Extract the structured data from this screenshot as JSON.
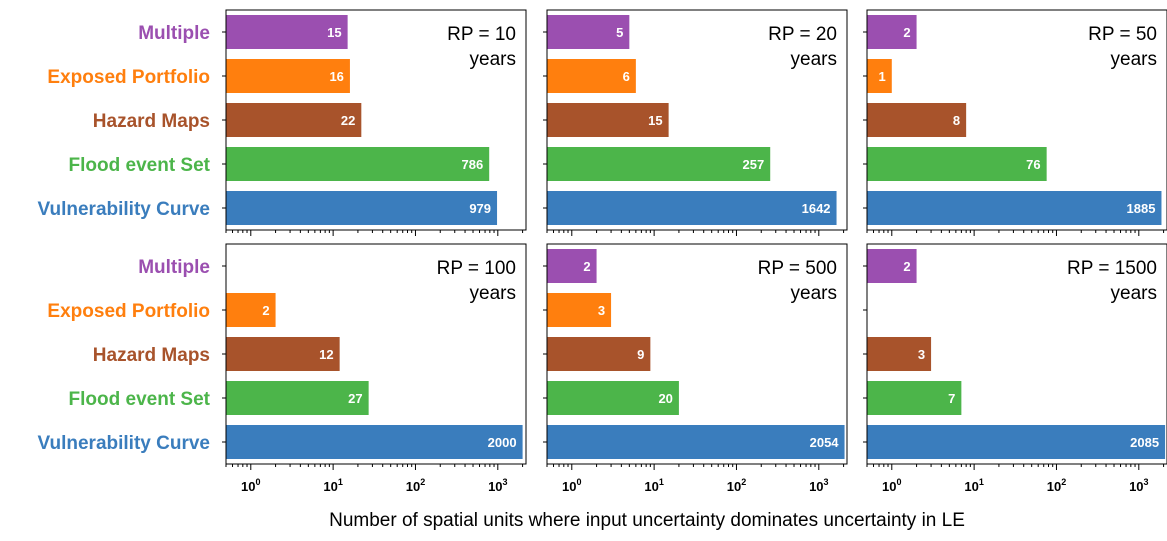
{
  "chart_data": {
    "type": "bar",
    "orientation": "horizontal",
    "x_scale": "log",
    "xlim": [
      0.5,
      2200
    ],
    "xlabel": "Number of spatial units where input uncertainty dominates uncertainty in LE",
    "categories": [
      "Multiple",
      "Exposed Portfolio",
      "Hazard Maps",
      "Flood event Set",
      "Vulnerability Curve"
    ],
    "category_colors": [
      "#9b4fb0",
      "#ff7f0e",
      "#a8532b",
      "#4cb54a",
      "#3a7dbd"
    ],
    "x_ticks": [
      {
        "base": "10",
        "exp": "0"
      },
      {
        "base": "10",
        "exp": "1"
      },
      {
        "base": "10",
        "exp": "2"
      },
      {
        "base": "10",
        "exp": "3"
      }
    ],
    "panels": [
      {
        "title": [
          "RP = 10",
          "years"
        ],
        "values": [
          15,
          16,
          22,
          786,
          979
        ]
      },
      {
        "title": [
          "RP = 20",
          "years"
        ],
        "values": [
          5,
          6,
          15,
          257,
          1642
        ]
      },
      {
        "title": [
          "RP = 50",
          "years"
        ],
        "values": [
          2,
          1,
          8,
          76,
          1885
        ]
      },
      {
        "title": [
          "RP = 100",
          "years"
        ],
        "values": [
          null,
          2,
          12,
          27,
          2000
        ]
      },
      {
        "title": [
          "RP = 500",
          "years"
        ],
        "values": [
          2,
          3,
          9,
          20,
          2054
        ]
      },
      {
        "title": [
          "RP = 1500",
          "years"
        ],
        "values": [
          2,
          null,
          3,
          7,
          2085
        ]
      }
    ]
  }
}
